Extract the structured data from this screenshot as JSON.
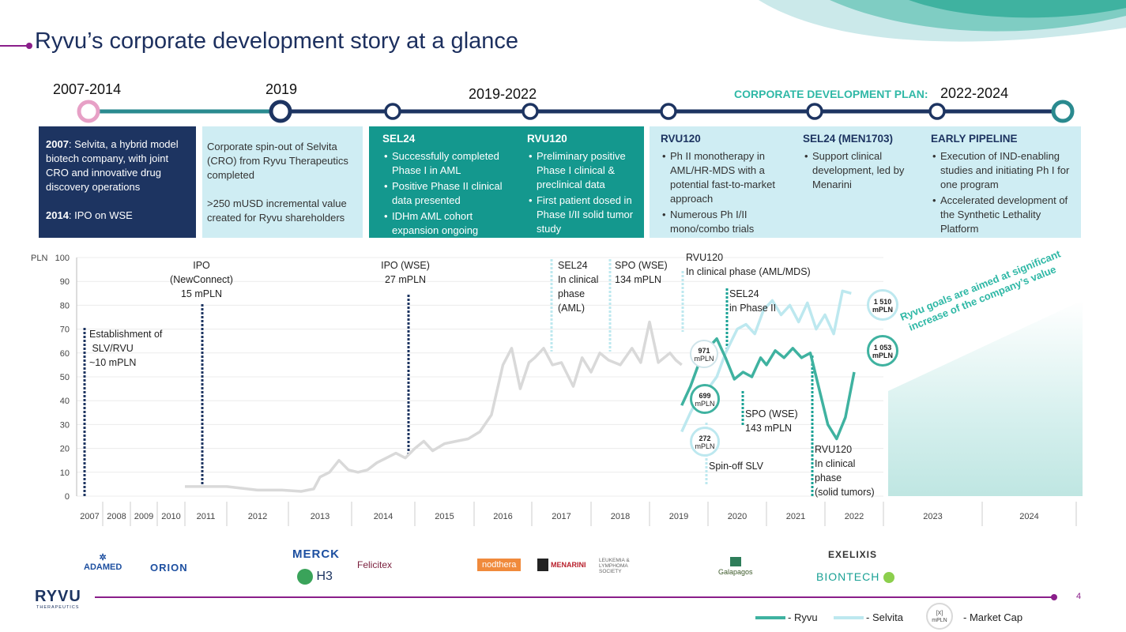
{
  "slide": {
    "title": "Ryvu’s corporate development story at a glance",
    "page_number": "4"
  },
  "timeline": {
    "years": [
      "2007-2014",
      "2019",
      "2019-2022",
      "2022-2024"
    ],
    "plan_label": "CORPORATE DEVELOPMENT PLAN:"
  },
  "boxes": {
    "b1": {
      "l1_bold": "2007",
      "l1": ": Selvita, a hybrid model biotech company, with joint CRO and innovative drug discovery operations",
      "l2_bold": "2014",
      "l2": ": IPO on WSE"
    },
    "b2": {
      "p1": "Corporate spin-out of Selvita (CRO) from Ryvu Therapeutics completed",
      "p2": ">250 mUSD incremental value created for Ryvu shareholders"
    },
    "b3": {
      "head": "SEL24",
      "items": [
        "Successfully completed Phase I in AML",
        "Positive Phase II clinical data presented",
        "IDHm AML cohort expansion ongoing"
      ]
    },
    "b4": {
      "head": "RVU120",
      "items": [
        "Preliminary positive Phase I clinical & preclinical data",
        "First patient dosed in Phase I/II solid tumor study"
      ]
    },
    "b5": {
      "head": "RVU120",
      "items": [
        "Ph II monotherapy in AML/HR-MDS with a potential fast-to-market approach",
        "Numerous Ph I/II mono/combo trials"
      ]
    },
    "b6": {
      "head": "SEL24 (MEN1703)",
      "items": [
        "Support clinical development, led by Menarini"
      ]
    },
    "b7": {
      "head": "EARLY PIPELINE",
      "items": [
        "Execution of IND-enabling studies and initiating Ph I for one program",
        "Accelerated development of the Synthetic Lethality Platform"
      ]
    }
  },
  "annotations": {
    "est": "Establishment of\n SLV/RVU\n~10 mPLN",
    "ipo_nc": "IPO\n(NewConnect)\n15 mPLN",
    "ipo_wse": "IPO (WSE)\n27 mPLN",
    "sel24_clin": "SEL24\nIn clinical\nphase\n(AML)",
    "spo1": "SPO (WSE)\n134 mPLN",
    "rvu120_aml": "RVU120\nIn clinical phase (AML/MDS)",
    "sel24_p2": "SEL24\nin Phase II",
    "spo2": "SPO (WSE)\n143 mPLN",
    "rvu120_solid": "RVU120\nIn clinical\nphase\n(solid tumors)",
    "spinoff": "Spin-off SLV",
    "goal": "Ryvu goals are aimed at significant\nincrease of the company’s value"
  },
  "bubbles": [
    {
      "value": "971",
      "unit": "mPLN"
    },
    {
      "value": "699",
      "unit": "mPLN"
    },
    {
      "value": "272",
      "unit": "mPLN"
    },
    {
      "value": "1 510",
      "unit": "mPLN"
    },
    {
      "value": "1 053",
      "unit": "mPLN"
    }
  ],
  "legend": {
    "ryvu": "- Ryvu",
    "selvita": "- Selvita",
    "mcap": "- Market Cap",
    "mcap_icon_top": "[X]",
    "mcap_icon_bottom": "mPLN"
  },
  "logos": [
    "ADAMED",
    "ORION",
    "MERCK",
    "H3",
    "Felicitex",
    "nodthera",
    "MENARINI",
    "LEUKEMIA & LYMPHOMA SOCIETY",
    "Galapagos",
    "EXELIXIS",
    "BIONTECH"
  ],
  "brand": {
    "name": "RYVU",
    "sub": "THERAPEUTICS"
  },
  "colors": {
    "navy": "#1d3461",
    "teal": "#1aa195",
    "light": "#cfedf3",
    "pink": "#e7a0c6",
    "purple": "#8a1e8a",
    "grey": "#d9d9d9",
    "ryvu_line": "#3fb2a0",
    "selvita_line": "#bde8ef"
  },
  "chart_data": {
    "type": "line",
    "ylabel": "PLN",
    "ylim": [
      0,
      100
    ],
    "yticks": [
      0,
      10,
      20,
      30,
      40,
      50,
      60,
      70,
      80,
      90,
      100
    ],
    "xticks": [
      "2007",
      "2008",
      "2009",
      "2010",
      "2011",
      "2012",
      "2013",
      "2014",
      "2015",
      "2016",
      "2017",
      "2018",
      "2019",
      "2020",
      "2021",
      "2022",
      "2023",
      "2024"
    ],
    "series": [
      {
        "name": "",
        "x": [
          2011.0,
          2011.5,
          2012.0,
          2012.5,
          2012.9,
          2013.2,
          2013.4,
          2013.5,
          2013.65,
          2013.8,
          2013.95,
          2014.1,
          2014.25,
          2014.4,
          2014.55,
          2014.7,
          2014.85,
          2015.0,
          2015.15,
          2015.3,
          2015.5,
          2015.7,
          2015.9,
          2016.1,
          2016.3,
          2016.5,
          2016.65,
          2016.8,
          2016.95,
          2017.05,
          2017.2,
          2017.35,
          2017.5,
          2017.7,
          2017.85,
          2018.0,
          2018.15,
          2018.3,
          2018.5,
          2018.7,
          2018.85,
          2019.0,
          2019.15,
          2019.25,
          2019.35,
          2019.45,
          2019.55
        ],
        "values": [
          4,
          4,
          4,
          2.5,
          2.5,
          2,
          3,
          8,
          10,
          15,
          11,
          10,
          11,
          14,
          16,
          18,
          16,
          20,
          23,
          19,
          22,
          23,
          24,
          27,
          34,
          55,
          62,
          45,
          56,
          58,
          62,
          55,
          56,
          46,
          58,
          52,
          60,
          57,
          55,
          62,
          56,
          73,
          56,
          58,
          60,
          57,
          55
        ]
      },
      {
        "name": "Selvita",
        "x": [
          2019.55,
          2019.7,
          2019.85,
          2020.0,
          2020.15,
          2020.3,
          2020.5,
          2020.65,
          2020.8,
          2020.95,
          2021.1,
          2021.25,
          2021.4,
          2021.55,
          2021.7,
          2021.85,
          2022.0,
          2022.15,
          2022.3,
          2022.45
        ],
        "values": [
          27,
          35,
          42,
          45,
          50,
          60,
          70,
          72,
          68,
          78,
          82,
          76,
          80,
          73,
          81,
          70,
          76,
          68,
          86,
          85
        ]
      },
      {
        "name": "Ryvu",
        "x": [
          2019.55,
          2019.7,
          2019.85,
          2020.0,
          2020.15,
          2020.3,
          2020.45,
          2020.6,
          2020.75,
          2020.9,
          2021.0,
          2021.15,
          2021.3,
          2021.45,
          2021.6,
          2021.75,
          2021.9,
          2022.05,
          2022.2,
          2022.35,
          2022.5
        ],
        "values": [
          38,
          46,
          56,
          62,
          66,
          58,
          49,
          52,
          50,
          58,
          55,
          61,
          58,
          62,
          58,
          60,
          45,
          30,
          24,
          33,
          52
        ]
      }
    ]
  }
}
